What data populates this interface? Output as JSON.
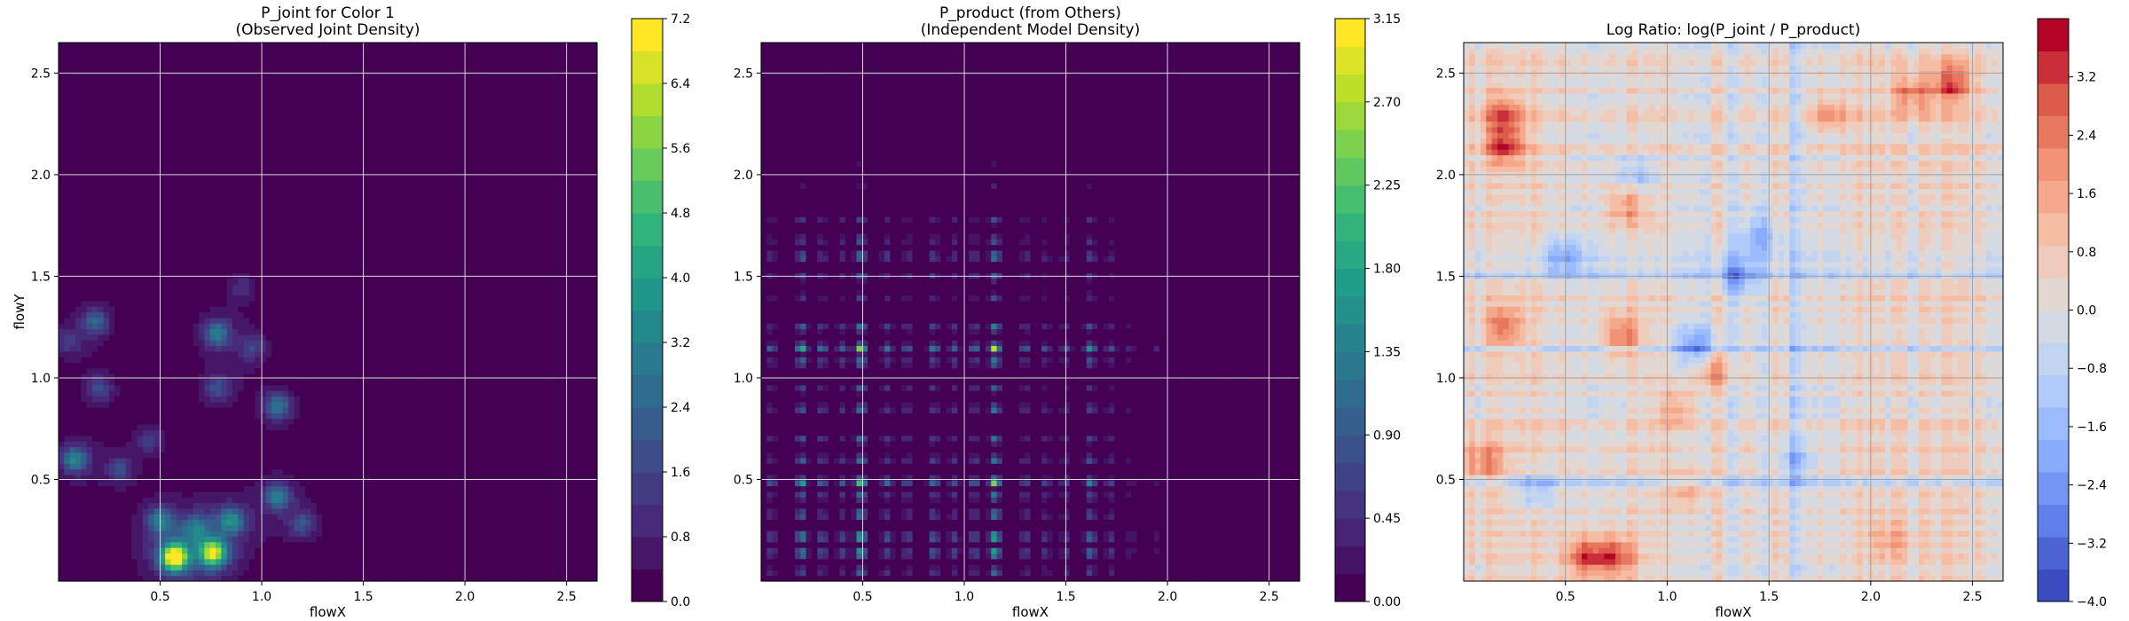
{
  "chart_data": [
    {
      "type": "heatmap",
      "title_lines": [
        "P_joint for Color 1",
        "(Observed Joint Density)"
      ],
      "xlabel": "flowX",
      "ylabel": "flowY",
      "xlim": [
        0.0,
        2.65
      ],
      "ylim": [
        0.0,
        2.65
      ],
      "xticks": [
        "0.5",
        "1.0",
        "1.5",
        "2.0",
        "2.5"
      ],
      "yticks": [
        "0.5",
        "1.0",
        "1.5",
        "2.0",
        "2.5"
      ],
      "colormap": "viridis",
      "colorbar": {
        "min": 0.0,
        "max": 7.2,
        "ticks": [
          "0.0",
          "0.8",
          "1.6",
          "2.4",
          "3.2",
          "4.0",
          "4.8",
          "5.6",
          "6.4",
          "7.2"
        ]
      },
      "peaks": [
        {
          "x": 0.57,
          "y": 0.12,
          "value": 7.0
        },
        {
          "x": 0.76,
          "y": 0.14,
          "value": 5.6
        },
        {
          "x": 0.5,
          "y": 0.3,
          "value": 2.4
        },
        {
          "x": 0.68,
          "y": 0.26,
          "value": 2.0
        },
        {
          "x": 0.85,
          "y": 0.3,
          "value": 2.8
        },
        {
          "x": 1.08,
          "y": 0.42,
          "value": 2.6
        },
        {
          "x": 1.2,
          "y": 0.28,
          "value": 1.6
        },
        {
          "x": 0.08,
          "y": 0.6,
          "value": 2.8
        },
        {
          "x": 0.3,
          "y": 0.55,
          "value": 1.4
        },
        {
          "x": 0.45,
          "y": 0.7,
          "value": 1.2
        },
        {
          "x": 0.2,
          "y": 0.95,
          "value": 1.5
        },
        {
          "x": 0.78,
          "y": 0.95,
          "value": 1.6
        },
        {
          "x": 1.08,
          "y": 0.86,
          "value": 2.4
        },
        {
          "x": 0.78,
          "y": 1.22,
          "value": 2.6
        },
        {
          "x": 0.95,
          "y": 1.15,
          "value": 1.3
        },
        {
          "x": 0.18,
          "y": 1.28,
          "value": 2.0
        },
        {
          "x": 0.05,
          "y": 1.18,
          "value": 1.2
        },
        {
          "x": 0.9,
          "y": 1.45,
          "value": 0.9
        }
      ]
    },
    {
      "type": "heatmap",
      "title_lines": [
        "P_product (from Others)",
        "(Independent Model Density)"
      ],
      "xlabel": "flowX",
      "ylabel": "",
      "xlim": [
        0.0,
        2.65
      ],
      "ylim": [
        0.0,
        2.65
      ],
      "xticks": [
        "0.5",
        "1.0",
        "1.5",
        "2.0",
        "2.5"
      ],
      "yticks": [
        "0.5",
        "1.0",
        "1.5",
        "2.0",
        "2.5"
      ],
      "colormap": "viridis",
      "colorbar": {
        "min": 0.0,
        "max": 3.15,
        "ticks": [
          "0.00",
          "0.45",
          "0.90",
          "1.35",
          "1.80",
          "2.25",
          "2.70",
          "3.15"
        ]
      },
      "x_marginal": [
        {
          "pos": 0.05,
          "w": 0.5
        },
        {
          "pos": 0.2,
          "w": 1.0
        },
        {
          "pos": 0.3,
          "w": 0.6
        },
        {
          "pos": 0.4,
          "w": 0.5
        },
        {
          "pos": 0.49,
          "w": 1.3
        },
        {
          "pos": 0.62,
          "w": 0.6
        },
        {
          "pos": 0.72,
          "w": 0.5
        },
        {
          "pos": 0.85,
          "w": 0.7
        },
        {
          "pos": 0.95,
          "w": 0.5
        },
        {
          "pos": 1.05,
          "w": 0.6
        },
        {
          "pos": 1.15,
          "w": 1.4
        },
        {
          "pos": 1.3,
          "w": 0.5
        },
        {
          "pos": 1.4,
          "w": 0.4
        },
        {
          "pos": 1.5,
          "w": 0.4
        },
        {
          "pos": 1.62,
          "w": 0.8
        },
        {
          "pos": 1.72,
          "w": 0.4
        },
        {
          "pos": 1.82,
          "w": 0.2
        },
        {
          "pos": 1.95,
          "w": 0.15
        }
      ],
      "y_marginal": [
        {
          "pos": 0.05,
          "w": 0.6
        },
        {
          "pos": 0.14,
          "w": 1.1
        },
        {
          "pos": 0.22,
          "w": 1.2
        },
        {
          "pos": 0.33,
          "w": 0.8
        },
        {
          "pos": 0.42,
          "w": 0.7
        },
        {
          "pos": 0.49,
          "w": 1.3
        },
        {
          "pos": 0.6,
          "w": 0.7
        },
        {
          "pos": 0.7,
          "w": 0.6
        },
        {
          "pos": 0.85,
          "w": 0.7
        },
        {
          "pos": 0.95,
          "w": 0.5
        },
        {
          "pos": 1.08,
          "w": 0.8
        },
        {
          "pos": 1.15,
          "w": 1.4
        },
        {
          "pos": 1.25,
          "w": 0.7
        },
        {
          "pos": 1.4,
          "w": 0.4
        },
        {
          "pos": 1.5,
          "w": 0.5
        },
        {
          "pos": 1.6,
          "w": 0.8
        },
        {
          "pos": 1.68,
          "w": 0.5
        },
        {
          "pos": 1.78,
          "w": 0.4
        },
        {
          "pos": 1.95,
          "w": 0.15
        },
        {
          "pos": 2.05,
          "w": 0.1
        }
      ]
    },
    {
      "type": "heatmap",
      "title_lines": [
        "Log Ratio: log(P_joint / P_product)"
      ],
      "xlabel": "flowX",
      "ylabel": "",
      "xlim": [
        0.0,
        2.65
      ],
      "ylim": [
        0.0,
        2.65
      ],
      "xticks": [
        "0.5",
        "1.0",
        "1.5",
        "2.0",
        "2.5"
      ],
      "yticks": [
        "0.5",
        "1.0",
        "1.5",
        "2.0",
        "2.5"
      ],
      "colormap": "coolwarm",
      "colorbar": {
        "min": -4.0,
        "max": 4.0,
        "ticks": [
          "−4.0",
          "−3.2",
          "−2.4",
          "−1.6",
          "−0.8",
          "0.0",
          "0.8",
          "1.6",
          "2.4",
          "3.2"
        ]
      },
      "hotspots": [
        {
          "x": 0.6,
          "y": 0.12,
          "value": 3.0
        },
        {
          "x": 0.75,
          "y": 0.12,
          "value": 2.6
        },
        {
          "x": 0.2,
          "y": 2.15,
          "value": 2.8
        },
        {
          "x": 0.2,
          "y": 2.3,
          "value": 2.2
        },
        {
          "x": 2.4,
          "y": 2.45,
          "value": 2.6
        },
        {
          "x": 2.2,
          "y": 2.4,
          "value": 2.0
        },
        {
          "x": 0.78,
          "y": 1.22,
          "value": 2.4
        },
        {
          "x": 0.2,
          "y": 1.25,
          "value": 2.2
        },
        {
          "x": 1.22,
          "y": 1.05,
          "value": 2.0
        },
        {
          "x": 0.8,
          "y": 1.85,
          "value": 1.8
        },
        {
          "x": 0.1,
          "y": 0.6,
          "value": 1.8
        },
        {
          "x": 1.05,
          "y": 0.85,
          "value": 1.6
        },
        {
          "x": 1.1,
          "y": 0.45,
          "value": 1.4
        },
        {
          "x": 1.8,
          "y": 2.3,
          "value": 1.6
        },
        {
          "x": 2.1,
          "y": 0.2,
          "value": 1.2
        },
        {
          "x": 1.35,
          "y": 1.5,
          "value": -2.0
        },
        {
          "x": 1.15,
          "y": 1.15,
          "value": -2.4
        },
        {
          "x": 0.49,
          "y": 1.6,
          "value": -1.8
        },
        {
          "x": 0.35,
          "y": 0.45,
          "value": -1.6
        },
        {
          "x": 1.45,
          "y": 1.7,
          "value": -1.8
        },
        {
          "x": 0.85,
          "y": 2.0,
          "value": -1.5
        },
        {
          "x": 1.62,
          "y": 0.6,
          "value": -1.4
        }
      ],
      "blue_bands_x": [
        1.15,
        1.32,
        1.45,
        1.62
      ],
      "blue_bands_y": [
        1.15,
        1.5,
        1.6,
        0.49
      ]
    }
  ]
}
